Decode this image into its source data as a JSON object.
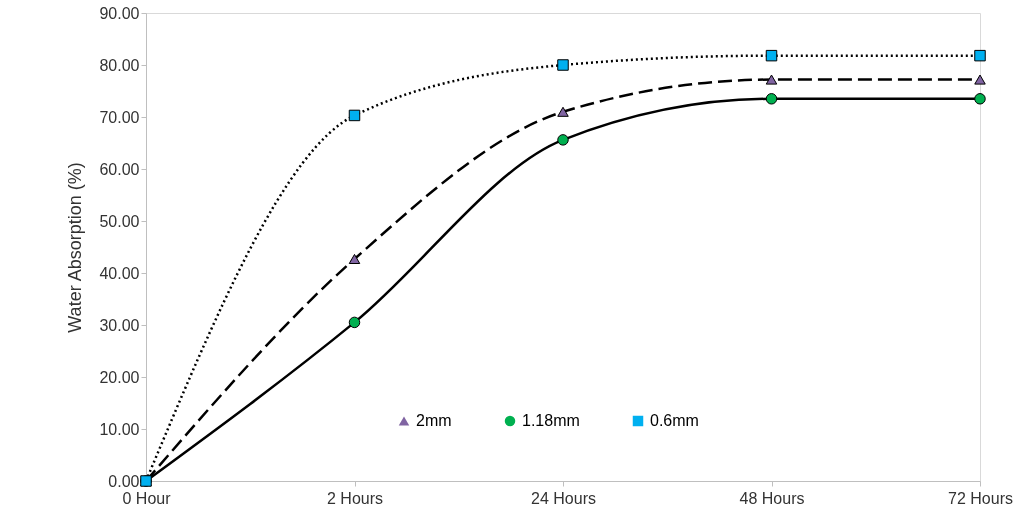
{
  "chart_data": {
    "type": "line",
    "ylabel": "Water Absorption (%)",
    "categories": [
      "0 Hour",
      "2 Hours",
      "24 Hours",
      "48 Hours",
      "72 Hours"
    ],
    "ylim": [
      0,
      90
    ],
    "yticks": [
      {
        "value": 0,
        "label": "0.00"
      },
      {
        "value": 10,
        "label": "10.00"
      },
      {
        "value": 20,
        "label": "20.00"
      },
      {
        "value": 30,
        "label": "30.00"
      },
      {
        "value": 40,
        "label": "40.00"
      },
      {
        "value": 50,
        "label": "50.00"
      },
      {
        "value": 60,
        "label": "60.00"
      },
      {
        "value": 70,
        "label": "70.00"
      },
      {
        "value": 80,
        "label": "80.00"
      },
      {
        "value": 90,
        "label": "90.00"
      }
    ],
    "grid": false,
    "legend": "bottom right",
    "series": [
      {
        "name": "2mm",
        "color": "#8064a2",
        "marker": "triangle",
        "line_style": "dashed",
        "values": [
          0,
          42.7,
          71,
          77.2,
          77.2
        ]
      },
      {
        "name": "1.18mm",
        "color": "#00b050",
        "marker": "circle",
        "line_style": "solid",
        "values": [
          0,
          30.5,
          65.6,
          73.5,
          73.5
        ]
      },
      {
        "name": "0.6mm",
        "color": "#00b0f0",
        "marker": "square",
        "line_style": "dotted",
        "values": [
          0,
          70.3,
          80,
          81.8,
          81.8
        ]
      }
    ]
  }
}
